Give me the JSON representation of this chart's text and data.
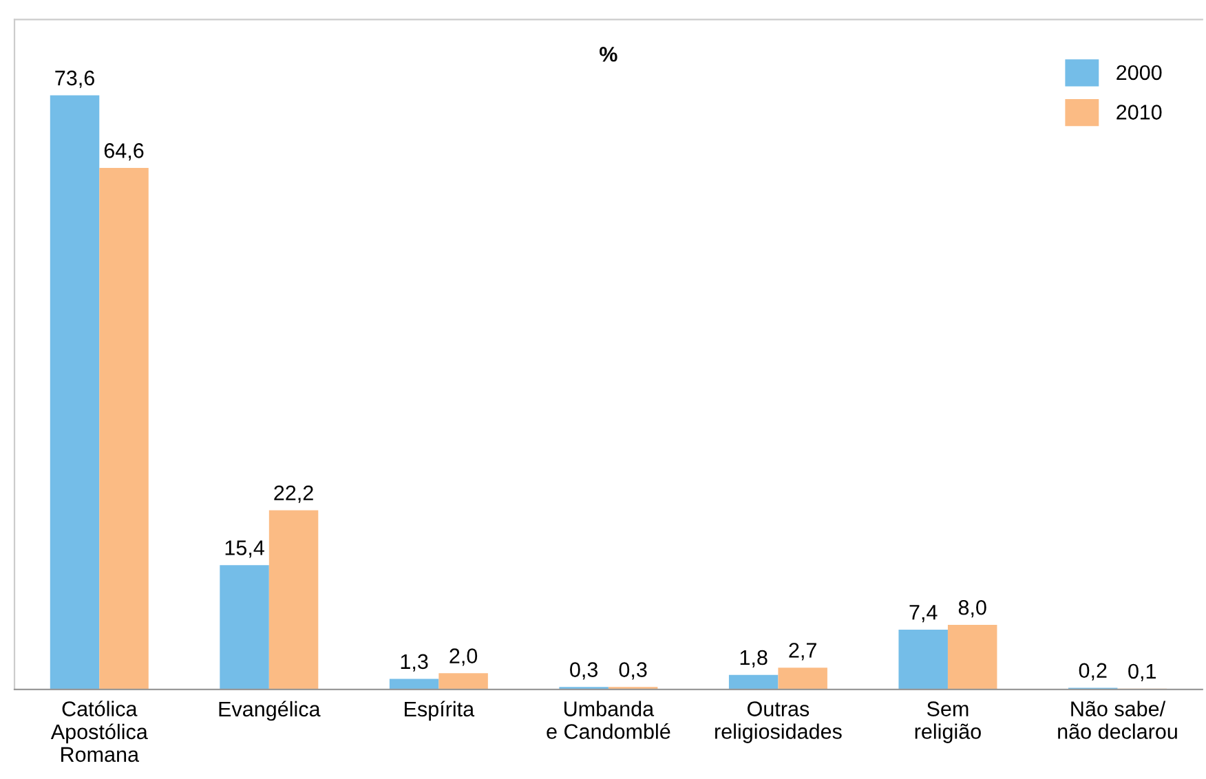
{
  "chart_data": {
    "type": "bar",
    "title": "%",
    "categories": [
      "Católica\nApostólica\nRomana",
      "Evangélica",
      "Espírita",
      "Umbanda\ne Candomblé",
      "Outras\nreligiosidades",
      "Sem\nreligião",
      "Não sabe/\nnão declarou"
    ],
    "series": [
      {
        "name": "2000",
        "color": "#74bde8",
        "values": [
          73.6,
          15.4,
          1.3,
          0.3,
          1.8,
          7.4,
          0.2
        ],
        "value_labels": [
          "73,6",
          "15,4",
          "1,3",
          "0,3",
          "1,8",
          "7,4",
          "0,2"
        ]
      },
      {
        "name": "2010",
        "color": "#fbbb84",
        "values": [
          64.6,
          22.2,
          2.0,
          0.3,
          2.7,
          8.0,
          0.1
        ],
        "value_labels": [
          "64,6",
          "22,2",
          "2,0",
          "0,3",
          "2,7",
          "8,0",
          "0,1"
        ]
      }
    ],
    "ylim": [
      0,
      83
    ],
    "tick_labels": "x",
    "legend": "top right",
    "grid": false
  }
}
